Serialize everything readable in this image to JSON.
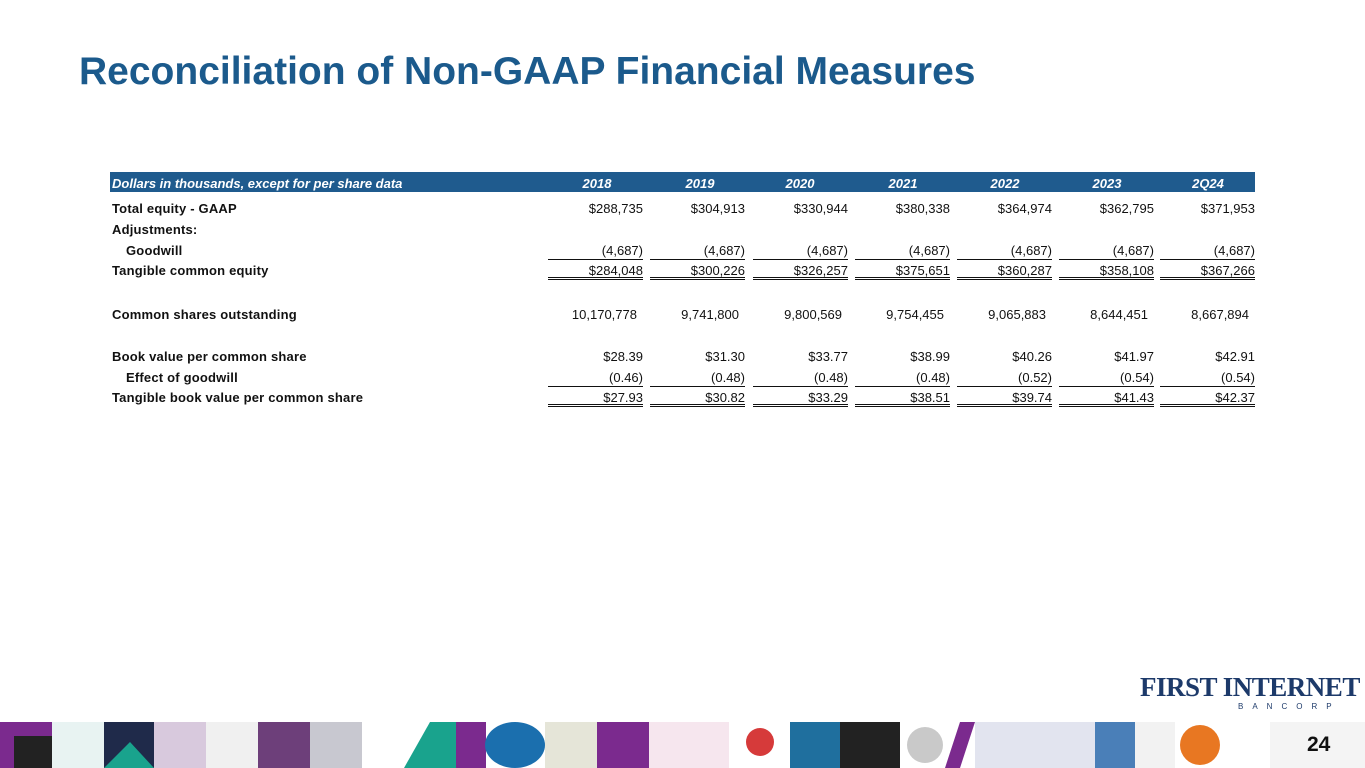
{
  "title": "Reconciliation of Non-GAAP Financial Measures",
  "table": {
    "header": [
      "Dollars in thousands, except for per share data",
      "2018",
      "2019",
      "2020",
      "2021",
      "2022",
      "2023",
      "2Q24"
    ],
    "rows": [
      [
        "Total equity - GAAP",
        "$288,735",
        "$304,913",
        "$330,944",
        "$380,338",
        "$364,974",
        "$362,795",
        "$371,953"
      ],
      [
        "Adjustments:"
      ],
      [
        "Goodwill",
        "(4,687)",
        "(4,687)",
        "(4,687)",
        "(4,687)",
        "(4,687)",
        "(4,687)",
        "(4,687)"
      ],
      [
        "Tangible common equity",
        "$284,048",
        "$300,226",
        "$326,257",
        "$375,651",
        "$360,287",
        "$358,108",
        "$367,266"
      ],
      [
        "Common shares outstanding",
        "10,170,778",
        "9,741,800",
        "9,800,569",
        "9,754,455",
        "9,065,883",
        "8,644,451",
        "8,667,894"
      ],
      [
        "Book value per common share",
        "$28.39",
        "$31.30",
        "$33.77",
        "$38.99",
        "$40.26",
        "$41.97",
        "$42.91"
      ],
      [
        "Effect of goodwill",
        "(0.46)",
        "(0.48)",
        "(0.48)",
        "(0.48)",
        "(0.52)",
        "(0.54)",
        "(0.54)"
      ],
      [
        "Tangible book value per common share",
        "$27.93",
        "$30.82",
        "$33.29",
        "$38.51",
        "$39.74",
        "$41.43",
        "$42.37"
      ]
    ]
  },
  "logo": {
    "name": "FIRST INTERNET",
    "sub": "BANCORP"
  },
  "page_number": "24"
}
